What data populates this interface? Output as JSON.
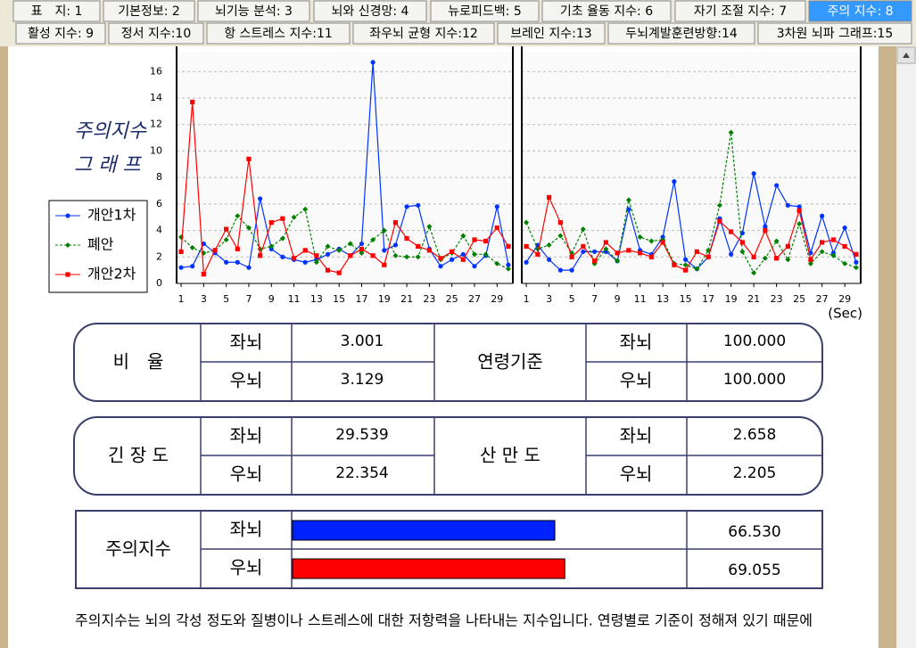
{
  "tabs": {
    "row1": [
      "표　지: 1",
      "기본정보: 2",
      "뇌기능 분석: 3",
      "뇌와 신경망: 4",
      "뉴로피드백: 5",
      "기초 율동 지수: 6",
      "자기 조절 지수: 7",
      "주의 지수: 8"
    ],
    "row2": [
      "활성 지수: 9",
      "정서 지수:10",
      "항 스트레스 지수:11",
      "좌우뇌 균형 지수:12",
      "브레인 지수:13",
      "두뇌계발훈련방향:14",
      "3차원 뇌파 그래프:15"
    ],
    "row1_selected": 7
  },
  "graph_title": [
    "주의지수",
    "그 래 프"
  ],
  "chart_data": [
    {
      "type": "line",
      "x": [
        1,
        2,
        3,
        4,
        5,
        6,
        7,
        8,
        9,
        10,
        11,
        12,
        13,
        14,
        15,
        16,
        17,
        18,
        19,
        20,
        21,
        22,
        23,
        24,
        25,
        26,
        27,
        28,
        29,
        30
      ],
      "xlim": [
        0.6,
        30.4
      ],
      "xticks": [
        1,
        3,
        5,
        7,
        9,
        11,
        13,
        15,
        17,
        19,
        21,
        23,
        25,
        27,
        29
      ],
      "ylim": [
        0,
        17.5
      ],
      "yticks": [
        0,
        2,
        4,
        6,
        8,
        10,
        12,
        14,
        16
      ],
      "grid": true,
      "series": [
        {
          "name": "개안1차",
          "color": "#0033ff",
          "marker": "circle",
          "dashed": false,
          "values": [
            1.2,
            1.3,
            3.0,
            2.3,
            1.6,
            1.6,
            1.2,
            6.4,
            2.6,
            2.0,
            1.8,
            1.6,
            1.8,
            2.2,
            2.6,
            2.1,
            3.0,
            16.7,
            2.5,
            2.9,
            5.8,
            5.9,
            2.6,
            1.3,
            1.8,
            2.2,
            1.3,
            2.1,
            5.8,
            1.4
          ]
        },
        {
          "name": "폐안",
          "color": "#008000",
          "marker": "diamond",
          "dashed": true,
          "values": [
            3.5,
            2.7,
            2.3,
            2.5,
            3.3,
            5.1,
            4.2,
            2.6,
            2.8,
            3.4,
            5.0,
            5.6,
            1.6,
            2.8,
            2.5,
            3.0,
            2.3,
            3.3,
            4.0,
            2.1,
            2.0,
            2.0,
            4.3,
            1.8,
            2.3,
            3.6,
            2.2,
            2.2,
            1.5,
            1.1
          ]
        },
        {
          "name": "개안2차",
          "color": "#ff0000",
          "marker": "square",
          "dashed": false,
          "values": [
            2.4,
            13.7,
            0.7,
            2.5,
            4.1,
            2.6,
            9.4,
            2.1,
            4.6,
            4.9,
            1.9,
            2.5,
            2.1,
            1.0,
            0.8,
            2.1,
            2.6,
            2.1,
            1.4,
            4.6,
            3.4,
            2.8,
            2.5,
            1.9,
            2.4,
            1.8,
            3.3,
            3.2,
            4.2,
            2.8
          ]
        }
      ]
    },
    {
      "type": "line",
      "x": [
        1,
        2,
        3,
        4,
        5,
        6,
        7,
        8,
        9,
        10,
        11,
        12,
        13,
        14,
        15,
        16,
        17,
        18,
        19,
        20,
        21,
        22,
        23,
        24,
        25,
        26,
        27,
        28,
        29,
        30
      ],
      "xlim": [
        0.6,
        30.4
      ],
      "xticks": [
        1,
        3,
        5,
        7,
        9,
        11,
        13,
        15,
        17,
        19,
        21,
        23,
        25,
        27,
        29
      ],
      "xlabel": "(Sec)",
      "ylim": [
        0,
        17.5
      ],
      "yticks": [
        0,
        2,
        4,
        6,
        8,
        10,
        12,
        14,
        16
      ],
      "grid": true,
      "series": [
        {
          "color": "#0033ff",
          "marker": "circle",
          "dashed": false,
          "values": [
            1.6,
            2.9,
            1.8,
            1.0,
            1.0,
            2.4,
            2.4,
            2.4,
            1.7,
            5.6,
            2.5,
            2.2,
            3.5,
            7.7,
            1.8,
            1.1,
            2.0,
            4.9,
            2.2,
            3.8,
            8.3,
            4.3,
            7.4,
            5.9,
            5.8,
            2.3,
            5.1,
            2.3,
            4.2,
            1.6
          ]
        },
        {
          "color": "#008000",
          "marker": "diamond",
          "dashed": true,
          "values": [
            4.6,
            2.6,
            2.9,
            3.6,
            2.3,
            4.1,
            1.5,
            2.6,
            1.7,
            6.3,
            3.5,
            3.2,
            3.3,
            1.5,
            1.4,
            1.1,
            2.5,
            5.9,
            11.4,
            2.4,
            0.8,
            1.9,
            3.2,
            1.8,
            4.5,
            1.5,
            2.4,
            2.1,
            1.5,
            1.2
          ]
        },
        {
          "color": "#ff0000",
          "marker": "square",
          "dashed": false,
          "values": [
            2.8,
            2.2,
            6.5,
            4.6,
            2.0,
            2.8,
            1.7,
            3.1,
            2.3,
            2.5,
            2.3,
            2.0,
            3.1,
            1.4,
            1.0,
            2.4,
            2.0,
            4.7,
            3.9,
            3.1,
            2.0,
            4.0,
            1.9,
            2.8,
            5.5,
            1.8,
            3.1,
            3.3,
            2.8,
            2.2
          ]
        }
      ]
    }
  ],
  "ratio_table": {
    "label": "비　율",
    "rows": [
      [
        "좌뇌",
        "3.001"
      ],
      [
        "우뇌",
        "3.129"
      ]
    ],
    "ref_label": "연령기준",
    "ref_rows": [
      [
        "좌뇌",
        "100.000"
      ],
      [
        "우뇌",
        "100.000"
      ]
    ]
  },
  "tension_table": {
    "label": "긴 장 도",
    "rows": [
      [
        "좌뇌",
        "29.539"
      ],
      [
        "우뇌",
        "22.354"
      ]
    ],
    "ref_label": "산 만 도",
    "ref_rows": [
      [
        "좌뇌",
        "2.658"
      ],
      [
        "우뇌",
        "2.205"
      ]
    ]
  },
  "attention_table": {
    "label": "주의지수",
    "xlim": [
      0,
      100
    ],
    "rows": [
      {
        "side": "좌뇌",
        "value": 66.53,
        "value_label": "66.530",
        "color": "#0022ff"
      },
      {
        "side": "우뇌",
        "value": 69.055,
        "value_label": "69.055",
        "color": "#ff0000"
      }
    ]
  },
  "description": "주의지수는 뇌의 각성 정도와 질병이나 스트레스에 대한 저항력을 나타내는 지수입니다. 연령별로 기준이 정해져 있기 때문에"
}
